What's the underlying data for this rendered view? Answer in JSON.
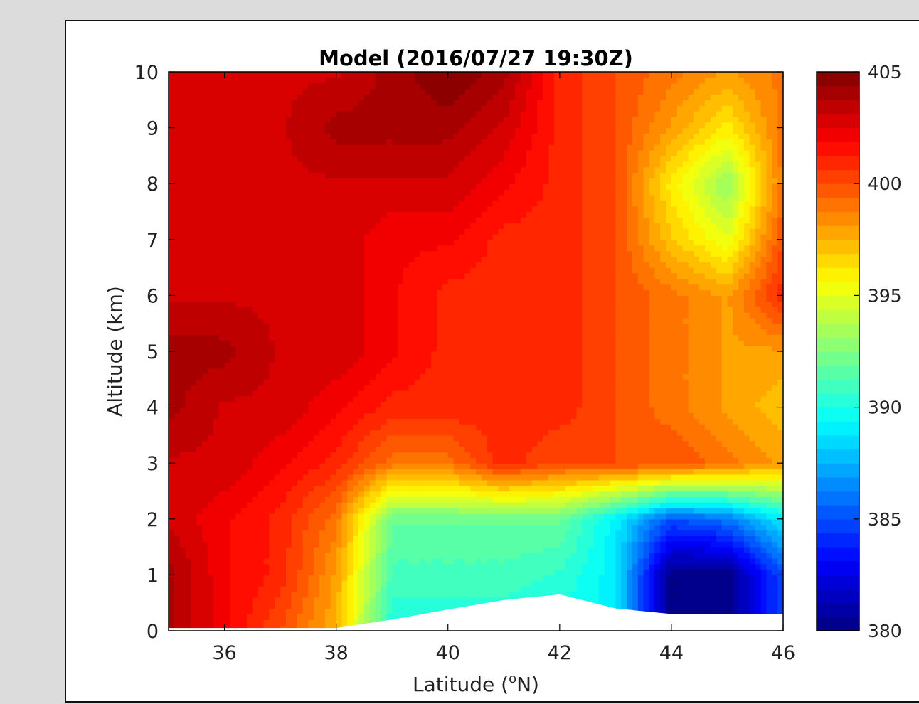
{
  "chart_data": {
    "type": "heatmap",
    "title": "Model (2016/07/27 19:30Z)",
    "xlabel": "Latitude (",
    "xlabel_sup": "o",
    "xlabel_tail": "N)",
    "ylabel": "Altitude (km)",
    "xlim": [
      35,
      46
    ],
    "ylim": [
      0,
      10
    ],
    "xticks": [
      "36",
      "38",
      "40",
      "42",
      "44",
      "46"
    ],
    "yticks": [
      "0",
      "1",
      "2",
      "3",
      "4",
      "5",
      "6",
      "7",
      "8",
      "9",
      "10"
    ],
    "colorbar": {
      "range": [
        380,
        405
      ],
      "ticks": [
        "380",
        "385",
        "390",
        "395",
        "400",
        "405"
      ],
      "colormap": "jet"
    },
    "grid": {
      "latitudes": [
        35,
        36,
        37,
        38,
        39,
        40,
        41,
        42,
        43,
        44,
        45,
        46
      ],
      "altitudes": [
        0,
        1,
        2,
        3,
        4,
        5,
        6,
        7,
        8,
        9,
        10
      ],
      "values": [
        [
          404,
          402,
          400,
          397.5,
          390,
          390,
          390,
          390,
          389,
          380,
          380,
          385
        ],
        [
          404,
          402,
          401,
          398,
          391,
          391,
          391,
          390.5,
          389,
          380,
          380,
          385
        ],
        [
          403,
          402,
          401,
          399,
          392,
          392,
          392,
          392,
          389,
          385,
          386,
          389
        ],
        [
          403,
          403,
          402,
          401,
          399,
          399,
          401,
          400,
          400,
          400,
          399,
          398
        ],
        [
          404,
          403,
          403,
          402,
          401,
          401,
          401,
          401,
          400,
          399,
          398,
          397
        ],
        [
          404,
          404,
          403,
          403,
          402,
          401,
          401,
          401,
          400,
          399,
          398,
          398
        ],
        [
          403,
          403,
          403,
          403,
          402,
          401,
          401,
          401,
          400,
          399,
          398,
          401
        ],
        [
          403,
          403,
          403,
          403,
          402,
          402,
          401,
          401,
          400,
          397,
          395,
          400
        ],
        [
          403,
          403,
          403,
          403,
          403,
          403,
          402,
          401,
          400,
          396,
          393,
          399
        ],
        [
          403,
          403,
          403,
          404,
          404,
          404,
          403,
          401,
          400,
          398,
          396,
          399
        ],
        [
          403,
          403,
          403,
          403,
          404,
          405,
          404,
          401,
          400,
          399,
          398,
          399
        ]
      ]
    },
    "terrain_altitude_km": [
      0.05,
      0.05,
      0.05,
      0.05,
      0.2,
      0.38,
      0.55,
      0.65,
      0.4,
      0.3,
      0.3,
      0.3
    ]
  }
}
